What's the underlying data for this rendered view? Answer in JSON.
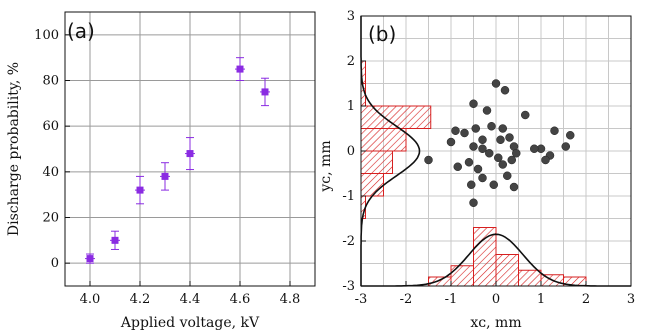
{
  "chart_data": [
    {
      "panel": "(a)",
      "type": "scatter",
      "xlabel": "Applied voltage, kV",
      "ylabel": "Discharge probability, %",
      "xlim": [
        3.9,
        4.9
      ],
      "ylim": [
        -10,
        110
      ],
      "xticks": [
        "4.0",
        "4.2",
        "4.4",
        "4.6",
        "4.8"
      ],
      "yticks": [
        "0",
        "20",
        "40",
        "60",
        "80",
        "100"
      ],
      "grid": true,
      "marker_color": "#8a2be2",
      "points": [
        {
          "x": 4.0,
          "y": 2,
          "xerr": 0.02,
          "yerr": 2
        },
        {
          "x": 4.1,
          "y": 10,
          "xerr": 0.02,
          "yerr": 4
        },
        {
          "x": 4.2,
          "y": 32,
          "xerr": 0.02,
          "yerr": 6
        },
        {
          "x": 4.3,
          "y": 38,
          "xerr": 0.02,
          "yerr": 6
        },
        {
          "x": 4.4,
          "y": 48,
          "xerr": 0.02,
          "yerr": 7
        },
        {
          "x": 4.6,
          "y": 85,
          "xerr": 0.02,
          "yerr": 5
        },
        {
          "x": 4.7,
          "y": 75,
          "xerr": 0.02,
          "yerr": 6
        }
      ]
    },
    {
      "panel": "(b)",
      "type": "scatter",
      "xlabel": "xᴄ, mm",
      "ylabel": "yᴄ, mm",
      "xlim": [
        -3,
        3
      ],
      "ylim": [
        -3,
        3
      ],
      "xticks": [
        "-3",
        "-2",
        "-1",
        "0",
        "1",
        "2",
        "3"
      ],
      "yticks": [
        "-3",
        "-2",
        "-1",
        "0",
        "1",
        "2",
        "3"
      ],
      "grid": true,
      "marker_color": "#444444",
      "hist_color": "#d62020",
      "points": [
        {
          "x": 0.0,
          "y": 1.5
        },
        {
          "x": -0.5,
          "y": 1.05
        },
        {
          "x": 0.2,
          "y": 1.35
        },
        {
          "x": -0.2,
          "y": 0.9
        },
        {
          "x": 0.65,
          "y": 0.8
        },
        {
          "x": -0.9,
          "y": 0.45
        },
        {
          "x": -0.45,
          "y": 0.5
        },
        {
          "x": -0.1,
          "y": 0.55
        },
        {
          "x": -0.7,
          "y": 0.4
        },
        {
          "x": 0.15,
          "y": 0.5
        },
        {
          "x": 1.3,
          "y": 0.45
        },
        {
          "x": 0.4,
          "y": 0.1
        },
        {
          "x": -1.0,
          "y": 0.2
        },
        {
          "x": -0.3,
          "y": 0.25
        },
        {
          "x": 0.1,
          "y": 0.25
        },
        {
          "x": 0.3,
          "y": 0.3
        },
        {
          "x": 1.65,
          "y": 0.35
        },
        {
          "x": 1.0,
          "y": 0.05
        },
        {
          "x": -0.5,
          "y": 0.1
        },
        {
          "x": -0.3,
          "y": 0.05
        },
        {
          "x": 0.45,
          "y": -0.05
        },
        {
          "x": 0.85,
          "y": 0.05
        },
        {
          "x": 1.2,
          "y": -0.1
        },
        {
          "x": 1.55,
          "y": 0.1
        },
        {
          "x": -0.6,
          "y": -0.25
        },
        {
          "x": -0.15,
          "y": -0.05
        },
        {
          "x": 0.05,
          "y": -0.15
        },
        {
          "x": 0.15,
          "y": -0.3
        },
        {
          "x": -0.85,
          "y": -0.35
        },
        {
          "x": -0.4,
          "y": -0.4
        },
        {
          "x": 0.35,
          "y": -0.2
        },
        {
          "x": -0.3,
          "y": -0.6
        },
        {
          "x": 0.25,
          "y": -0.55
        },
        {
          "x": -0.55,
          "y": -0.75
        },
        {
          "x": -0.05,
          "y": -0.75
        },
        {
          "x": 0.4,
          "y": -0.8
        },
        {
          "x": 1.1,
          "y": -0.2
        },
        {
          "x": -0.5,
          "y": -1.15
        },
        {
          "x": -1.5,
          "y": -0.2
        }
      ],
      "x_histogram": {
        "bin_edges": [
          -1.5,
          -1.0,
          -0.5,
          0.0,
          0.5,
          1.0,
          1.5,
          2.0
        ],
        "heights": [
          0.2,
          0.45,
          1.3,
          0.7,
          0.35,
          0.25,
          0.2
        ],
        "gaussian": {
          "mean": 0.0,
          "sigma": 0.6,
          "peak": 1.15
        }
      },
      "y_histogram": {
        "bin_edges": [
          -1.5,
          -1.0,
          -0.5,
          0.0,
          0.5,
          1.0,
          1.5,
          2.0
        ],
        "widths": [
          0.1,
          0.5,
          0.7,
          1.0,
          1.55,
          0.1,
          0.1
        ],
        "gaussian": {
          "mean": 0.0,
          "sigma": 0.55,
          "peak": 1.3
        }
      }
    }
  ]
}
